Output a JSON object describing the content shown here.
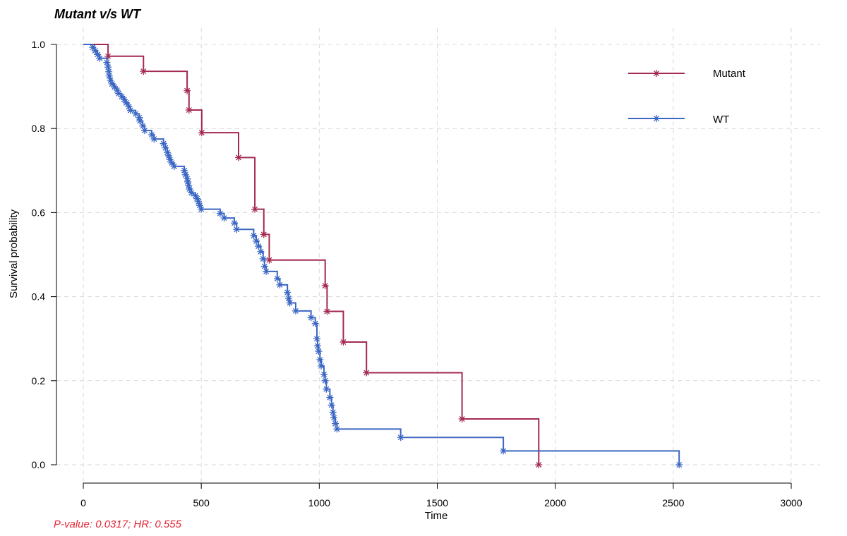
{
  "chart_data": {
    "type": "line",
    "title": "Mutant v/s WT",
    "xlabel": "Time",
    "ylabel": "Survival probability",
    "xlim": [
      0,
      3000
    ],
    "ylim": [
      0,
      1
    ],
    "xticks": [
      0,
      500,
      1000,
      1500,
      2000,
      2500,
      3000
    ],
    "yticks": [
      "0.0",
      "0.2",
      "0.4",
      "0.6",
      "0.8",
      "1.0"
    ],
    "grid": true,
    "legend_position": "top-right",
    "annotation": "P-value: 0.0317; HR: 0.555",
    "annotation_color": "#e32636",
    "series": [
      {
        "name": "Mutant",
        "color": "#a3294f",
        "steps": [
          [
            0,
            1.0
          ],
          [
            105,
            0.972
          ],
          [
            255,
            0.936
          ],
          [
            440,
            0.89
          ],
          [
            448,
            0.844
          ],
          [
            502,
            0.79
          ],
          [
            658,
            0.731
          ],
          [
            727,
            0.608
          ],
          [
            765,
            0.548
          ],
          [
            788,
            0.487
          ],
          [
            1025,
            0.426
          ],
          [
            1033,
            0.365
          ],
          [
            1102,
            0.292
          ],
          [
            1200,
            0.219
          ],
          [
            1605,
            0.109
          ],
          [
            1930,
            0.0
          ]
        ],
        "censor_points": [
          [
            105,
            0.972
          ],
          [
            255,
            0.936
          ],
          [
            440,
            0.89
          ],
          [
            448,
            0.844
          ],
          [
            502,
            0.79
          ],
          [
            658,
            0.731
          ],
          [
            727,
            0.608
          ],
          [
            765,
            0.548
          ],
          [
            788,
            0.487
          ],
          [
            1025,
            0.426
          ],
          [
            1033,
            0.365
          ],
          [
            1102,
            0.292
          ],
          [
            1200,
            0.219
          ],
          [
            1605,
            0.109
          ],
          [
            1930,
            0.0
          ]
        ]
      },
      {
        "name": "WT",
        "color": "#3a66c4",
        "steps": [
          [
            0,
            1.0
          ],
          [
            40,
            0.993
          ],
          [
            50,
            0.985
          ],
          [
            60,
            0.976
          ],
          [
            70,
            0.967
          ],
          [
            100,
            0.957
          ],
          [
            105,
            0.946
          ],
          [
            108,
            0.935
          ],
          [
            110,
            0.925
          ],
          [
            115,
            0.915
          ],
          [
            122,
            0.906
          ],
          [
            132,
            0.899
          ],
          [
            143,
            0.891
          ],
          [
            150,
            0.883
          ],
          [
            163,
            0.876
          ],
          [
            173,
            0.869
          ],
          [
            182,
            0.861
          ],
          [
            193,
            0.852
          ],
          [
            200,
            0.843
          ],
          [
            222,
            0.835
          ],
          [
            237,
            0.826
          ],
          [
            240,
            0.818
          ],
          [
            252,
            0.806
          ],
          [
            260,
            0.795
          ],
          [
            290,
            0.785
          ],
          [
            300,
            0.775
          ],
          [
            340,
            0.764
          ],
          [
            348,
            0.754
          ],
          [
            356,
            0.743
          ],
          [
            362,
            0.735
          ],
          [
            367,
            0.726
          ],
          [
            375,
            0.718
          ],
          [
            385,
            0.71
          ],
          [
            428,
            0.7
          ],
          [
            433,
            0.69
          ],
          [
            440,
            0.681
          ],
          [
            443,
            0.673
          ],
          [
            446,
            0.665
          ],
          [
            450,
            0.656
          ],
          [
            458,
            0.647
          ],
          [
            475,
            0.64
          ],
          [
            482,
            0.633
          ],
          [
            488,
            0.626
          ],
          [
            493,
            0.617
          ],
          [
            500,
            0.608
          ],
          [
            580,
            0.598
          ],
          [
            597,
            0.587
          ],
          [
            640,
            0.575
          ],
          [
            650,
            0.56
          ],
          [
            722,
            0.545
          ],
          [
            733,
            0.532
          ],
          [
            742,
            0.52
          ],
          [
            752,
            0.507
          ],
          [
            762,
            0.49
          ],
          [
            768,
            0.472
          ],
          [
            775,
            0.46
          ],
          [
            822,
            0.443
          ],
          [
            833,
            0.428
          ],
          [
            865,
            0.41
          ],
          [
            870,
            0.396
          ],
          [
            875,
            0.385
          ],
          [
            900,
            0.366
          ],
          [
            965,
            0.35
          ],
          [
            983,
            0.336
          ],
          [
            990,
            0.3
          ],
          [
            993,
            0.283
          ],
          [
            997,
            0.27
          ],
          [
            1003,
            0.25
          ],
          [
            1008,
            0.235
          ],
          [
            1020,
            0.215
          ],
          [
            1025,
            0.2
          ],
          [
            1030,
            0.18
          ],
          [
            1045,
            0.16
          ],
          [
            1052,
            0.142
          ],
          [
            1058,
            0.125
          ],
          [
            1062,
            0.112
          ],
          [
            1068,
            0.098
          ],
          [
            1075,
            0.085
          ],
          [
            1345,
            0.065
          ],
          [
            1780,
            0.033
          ],
          [
            2525,
            0.0
          ]
        ],
        "censor_points": [
          [
            40,
            0.993
          ],
          [
            50,
            0.985
          ],
          [
            60,
            0.976
          ],
          [
            70,
            0.967
          ],
          [
            100,
            0.957
          ],
          [
            105,
            0.946
          ],
          [
            108,
            0.935
          ],
          [
            110,
            0.925
          ],
          [
            115,
            0.915
          ],
          [
            122,
            0.906
          ],
          [
            132,
            0.899
          ],
          [
            143,
            0.891
          ],
          [
            150,
            0.883
          ],
          [
            163,
            0.876
          ],
          [
            173,
            0.869
          ],
          [
            182,
            0.861
          ],
          [
            193,
            0.852
          ],
          [
            200,
            0.843
          ],
          [
            222,
            0.835
          ],
          [
            237,
            0.826
          ],
          [
            240,
            0.818
          ],
          [
            252,
            0.806
          ],
          [
            260,
            0.795
          ],
          [
            290,
            0.785
          ],
          [
            300,
            0.775
          ],
          [
            340,
            0.764
          ],
          [
            348,
            0.754
          ],
          [
            356,
            0.743
          ],
          [
            362,
            0.735
          ],
          [
            367,
            0.726
          ],
          [
            375,
            0.718
          ],
          [
            385,
            0.71
          ],
          [
            428,
            0.7
          ],
          [
            433,
            0.69
          ],
          [
            440,
            0.681
          ],
          [
            443,
            0.673
          ],
          [
            446,
            0.665
          ],
          [
            450,
            0.656
          ],
          [
            458,
            0.647
          ],
          [
            475,
            0.64
          ],
          [
            482,
            0.633
          ],
          [
            488,
            0.626
          ],
          [
            493,
            0.617
          ],
          [
            500,
            0.608
          ],
          [
            580,
            0.598
          ],
          [
            597,
            0.587
          ],
          [
            640,
            0.575
          ],
          [
            650,
            0.56
          ],
          [
            722,
            0.545
          ],
          [
            733,
            0.532
          ],
          [
            742,
            0.52
          ],
          [
            752,
            0.507
          ],
          [
            762,
            0.49
          ],
          [
            768,
            0.472
          ],
          [
            775,
            0.46
          ],
          [
            822,
            0.443
          ],
          [
            833,
            0.428
          ],
          [
            865,
            0.41
          ],
          [
            870,
            0.396
          ],
          [
            875,
            0.385
          ],
          [
            900,
            0.366
          ],
          [
            965,
            0.35
          ],
          [
            983,
            0.336
          ],
          [
            990,
            0.3
          ],
          [
            993,
            0.283
          ],
          [
            997,
            0.27
          ],
          [
            1003,
            0.25
          ],
          [
            1008,
            0.235
          ],
          [
            1020,
            0.215
          ],
          [
            1025,
            0.2
          ],
          [
            1030,
            0.18
          ],
          [
            1045,
            0.16
          ],
          [
            1052,
            0.142
          ],
          [
            1058,
            0.125
          ],
          [
            1062,
            0.112
          ],
          [
            1068,
            0.098
          ],
          [
            1075,
            0.085
          ],
          [
            1345,
            0.065
          ],
          [
            1780,
            0.033
          ],
          [
            2525,
            0.0
          ]
        ]
      }
    ]
  }
}
